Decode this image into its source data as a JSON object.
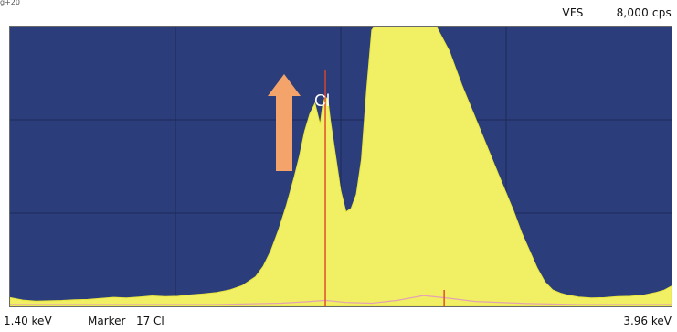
{
  "chart_data": {
    "type": "area",
    "xlabel": "",
    "ylabel": "",
    "xlim": [
      1.4,
      3.96
    ],
    "ylim": [
      0,
      8000
    ],
    "x_min_label": "1.40 keV",
    "x_max_label": "3.96 keV",
    "scale_label": "VFS",
    "scale_value": "8,000 cps",
    "marker_label": "Marker",
    "marker_element": "17 Cl",
    "marker_position_kev": 2.62,
    "grid": true,
    "grid_x": [
      1.4,
      2.04,
      2.68,
      3.32,
      3.96
    ],
    "grid_y": [
      0,
      2667,
      5333,
      8000
    ],
    "annotation": {
      "text": "Cl",
      "arrow": "up"
    },
    "series": [
      {
        "x": [
          1.4,
          1.45,
          1.5,
          1.55,
          1.6,
          1.65,
          1.7,
          1.75,
          1.8,
          1.85,
          1.9,
          1.95,
          2.0,
          2.05,
          2.1,
          2.15,
          2.2,
          2.25,
          2.3,
          2.35,
          2.38,
          2.41,
          2.44,
          2.47,
          2.5,
          2.52,
          2.54,
          2.56,
          2.58,
          2.6,
          2.61,
          2.62,
          2.63,
          2.64,
          2.66,
          2.68,
          2.7,
          2.72,
          2.74,
          2.76,
          2.78,
          2.8,
          2.81,
          2.82,
          2.84,
          2.86,
          2.88,
          2.9,
          2.95,
          3.0,
          3.05,
          3.1,
          3.15,
          3.2,
          3.25,
          3.3,
          3.35,
          3.38,
          3.41,
          3.44,
          3.47,
          3.5,
          3.53,
          3.56,
          3.6,
          3.65,
          3.7,
          3.75,
          3.8,
          3.85,
          3.9,
          3.93,
          3.96
        ],
        "y": [
          250,
          180,
          150,
          160,
          170,
          190,
          200,
          230,
          260,
          240,
          270,
          300,
          280,
          290,
          330,
          360,
          400,
          470,
          600,
          850,
          1150,
          1600,
          2200,
          2900,
          3700,
          4300,
          5000,
          5500,
          5800,
          5200,
          5750,
          6000,
          5900,
          5300,
          4300,
          3300,
          2700,
          2800,
          3200,
          4200,
          6200,
          7900,
          8000,
          8000,
          8000,
          8000,
          8000,
          8000,
          8000,
          8000,
          8000,
          7300,
          6300,
          5400,
          4500,
          3600,
          2700,
          2100,
          1600,
          1100,
          700,
          470,
          380,
          320,
          270,
          240,
          250,
          280,
          290,
          320,
          400,
          460,
          580
        ]
      },
      {
        "x": [
          1.4,
          2.2,
          2.45,
          2.55,
          2.62,
          2.7,
          2.8,
          2.9,
          3.0,
          3.1,
          3.2,
          3.4,
          3.6,
          3.96
        ],
        "y": [
          0,
          0,
          40,
          80,
          120,
          60,
          40,
          120,
          260,
          180,
          90,
          30,
          0,
          0
        ]
      }
    ],
    "bar_markers_kev": [
      2.62,
      3.08
    ]
  }
}
